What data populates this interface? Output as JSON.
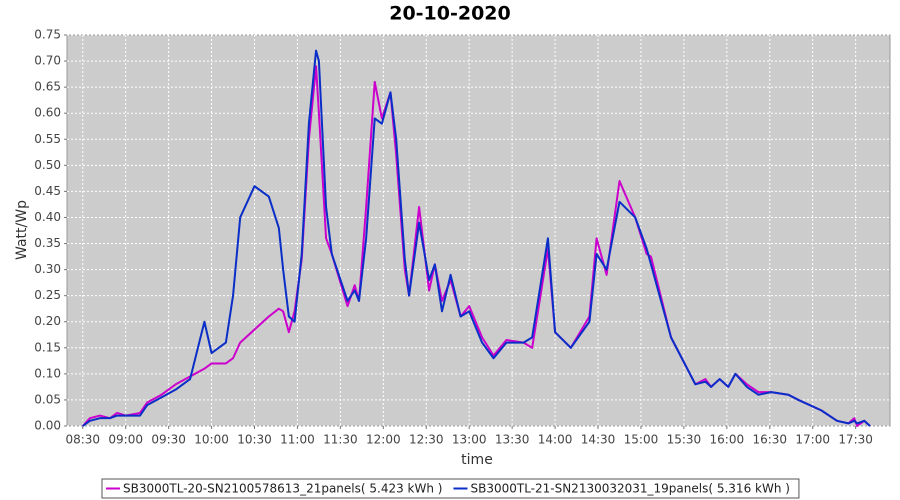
{
  "chart_data": {
    "type": "line",
    "title": "20-10-2020",
    "x_label": "time",
    "y_label": "Watt/Wp",
    "x": [
      "08:30",
      "08:35",
      "08:42",
      "08:49",
      "08:54",
      "09:00",
      "09:10",
      "09:15",
      "09:25",
      "09:35",
      "09:45",
      "09:55",
      "10:00",
      "10:10",
      "10:15",
      "10:20",
      "10:30",
      "10:40",
      "10:47",
      "10:50",
      "10:54",
      "10:58",
      "11:03",
      "11:08",
      "11:13",
      "11:15",
      "11:20",
      "11:24",
      "11:35",
      "11:40",
      "11:43",
      "11:48",
      "11:54",
      "11:59",
      "12:05",
      "12:09",
      "12:15",
      "12:18",
      "12:25",
      "12:32",
      "12:36",
      "12:41",
      "12:47",
      "12:54",
      "13:00",
      "13:09",
      "13:17",
      "13:26",
      "13:38",
      "13:44",
      "13:55",
      "14:00",
      "14:11",
      "14:24",
      "14:29",
      "14:36",
      "14:45",
      "14:56",
      "15:04",
      "15:07",
      "15:21",
      "15:38",
      "15:45",
      "15:49",
      "15:55",
      "16:01",
      "16:06",
      "16:14",
      "16:22",
      "16:31",
      "16:43",
      "16:50",
      "17:06",
      "17:17",
      "17:25",
      "17:29",
      "17:31",
      "17:36",
      "17:40"
    ],
    "series": [
      {
        "name": "SB3000TL-20-SN2100578613_21panels( 5.423 kWh )",
        "color": "#cc00cc",
        "values": [
          0,
          0.015,
          0.02,
          0.015,
          0.025,
          0.02,
          0.025,
          0.045,
          0.06,
          0.08,
          0.095,
          0.11,
          0.12,
          0.12,
          0.13,
          0.16,
          0.185,
          0.21,
          0.225,
          0.22,
          0.18,
          0.22,
          0.32,
          0.55,
          0.69,
          0.6,
          0.36,
          0.33,
          0.23,
          0.27,
          0.24,
          0.42,
          0.66,
          0.59,
          0.64,
          0.52,
          0.3,
          0.25,
          0.42,
          0.26,
          0.31,
          0.24,
          0.28,
          0.21,
          0.23,
          0.17,
          0.135,
          0.165,
          0.16,
          0.15,
          0.34,
          0.18,
          0.15,
          0.21,
          0.36,
          0.29,
          0.47,
          0.4,
          0.33,
          0.325,
          0.17,
          0.08,
          0.09,
          0.075,
          0.09,
          0.075,
          0.1,
          0.08,
          0.065,
          0.065,
          0.06,
          0.05,
          0.03,
          0.01,
          0.005,
          0.015,
          0,
          0.01,
          0
        ]
      },
      {
        "name": "SB3000TL-21-SN2130032031_19panels( 5.316 kWh )",
        "color": "#0a2ec8",
        "values": [
          0,
          0.01,
          0.015,
          0.015,
          0.02,
          0.02,
          0.02,
          0.04,
          0.055,
          0.07,
          0.09,
          0.2,
          0.14,
          0.16,
          0.25,
          0.4,
          0.46,
          0.44,
          0.38,
          0.3,
          0.21,
          0.2,
          0.33,
          0.58,
          0.72,
          0.7,
          0.42,
          0.33,
          0.24,
          0.26,
          0.24,
          0.36,
          0.59,
          0.58,
          0.64,
          0.55,
          0.32,
          0.25,
          0.39,
          0.28,
          0.31,
          0.22,
          0.29,
          0.21,
          0.22,
          0.16,
          0.13,
          0.16,
          0.16,
          0.17,
          0.36,
          0.18,
          0.15,
          0.2,
          0.33,
          0.3,
          0.43,
          0.4,
          0.34,
          0.31,
          0.17,
          0.08,
          0.085,
          0.075,
          0.09,
          0.075,
          0.1,
          0.075,
          0.06,
          0.065,
          0.06,
          0.05,
          0.03,
          0.01,
          0.005,
          0.01,
          0.005,
          0.01,
          0
        ]
      }
    ],
    "xlim": [
      "08:19",
      "17:54"
    ],
    "xticks": [
      "08:30",
      "09:00",
      "09:30",
      "10:00",
      "10:30",
      "11:00",
      "11:30",
      "12:00",
      "12:30",
      "13:00",
      "13:30",
      "14:00",
      "14:30",
      "15:00",
      "15:30",
      "16:00",
      "16:30",
      "17:00",
      "17:30"
    ],
    "ylim": [
      0,
      0.75
    ],
    "yticks": [
      {
        "value": 0,
        "label": "0.00"
      },
      0.05,
      {
        "value": 0.1,
        "label": "0.10"
      },
      0.15,
      {
        "value": 0.2,
        "label": "0.20"
      },
      0.25,
      {
        "value": 0.3,
        "label": "0.30"
      },
      0.35,
      {
        "value": 0.4,
        "label": "0.40"
      },
      0.45,
      {
        "value": 0.5,
        "label": "0.50"
      },
      0.55,
      {
        "value": 0.6,
        "label": "0.60"
      },
      0.65,
      {
        "value": 0.7,
        "label": "0.70"
      },
      0.75
    ],
    "grid": true,
    "legend": "bottom"
  }
}
